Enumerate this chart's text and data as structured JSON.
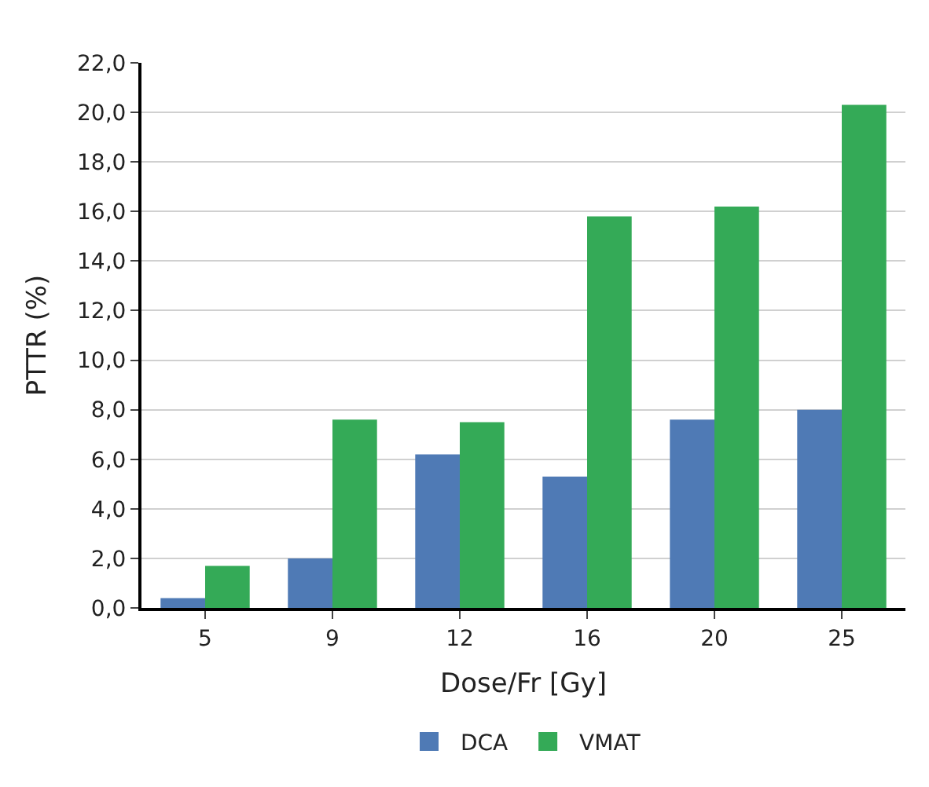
{
  "chart_data": {
    "type": "bar",
    "xlabel": "Dose/Fr [Gy]",
    "ylabel": "PTTR (%)",
    "categories": [
      "5",
      "9",
      "12",
      "16",
      "20",
      "25"
    ],
    "series": [
      {
        "name": "DCA",
        "color": "#4f7ab5",
        "values": [
          0.4,
          2.0,
          6.2,
          5.3,
          7.6,
          8.0
        ]
      },
      {
        "name": "VMAT",
        "color": "#34aa57",
        "values": [
          1.7,
          7.6,
          7.5,
          15.8,
          16.2,
          20.3
        ]
      }
    ],
    "ylim": [
      0,
      22
    ],
    "yticks": [
      {
        "value": 0,
        "label": "0,0"
      },
      {
        "value": 2,
        "label": "2,0"
      },
      {
        "value": 4,
        "label": "4,0"
      },
      {
        "value": 6,
        "label": "6,0"
      },
      {
        "value": 8,
        "label": "8,0"
      },
      {
        "value": 10,
        "label": "10,0"
      },
      {
        "value": 12,
        "label": "12,0"
      },
      {
        "value": 14,
        "label": "14,0"
      },
      {
        "value": 16,
        "label": "16,0"
      },
      {
        "value": 18,
        "label": "18,0"
      },
      {
        "value": 20,
        "label": "20,0"
      },
      {
        "value": 22,
        "label": "22,0"
      }
    ],
    "grid": "y",
    "legend": "bottom"
  }
}
